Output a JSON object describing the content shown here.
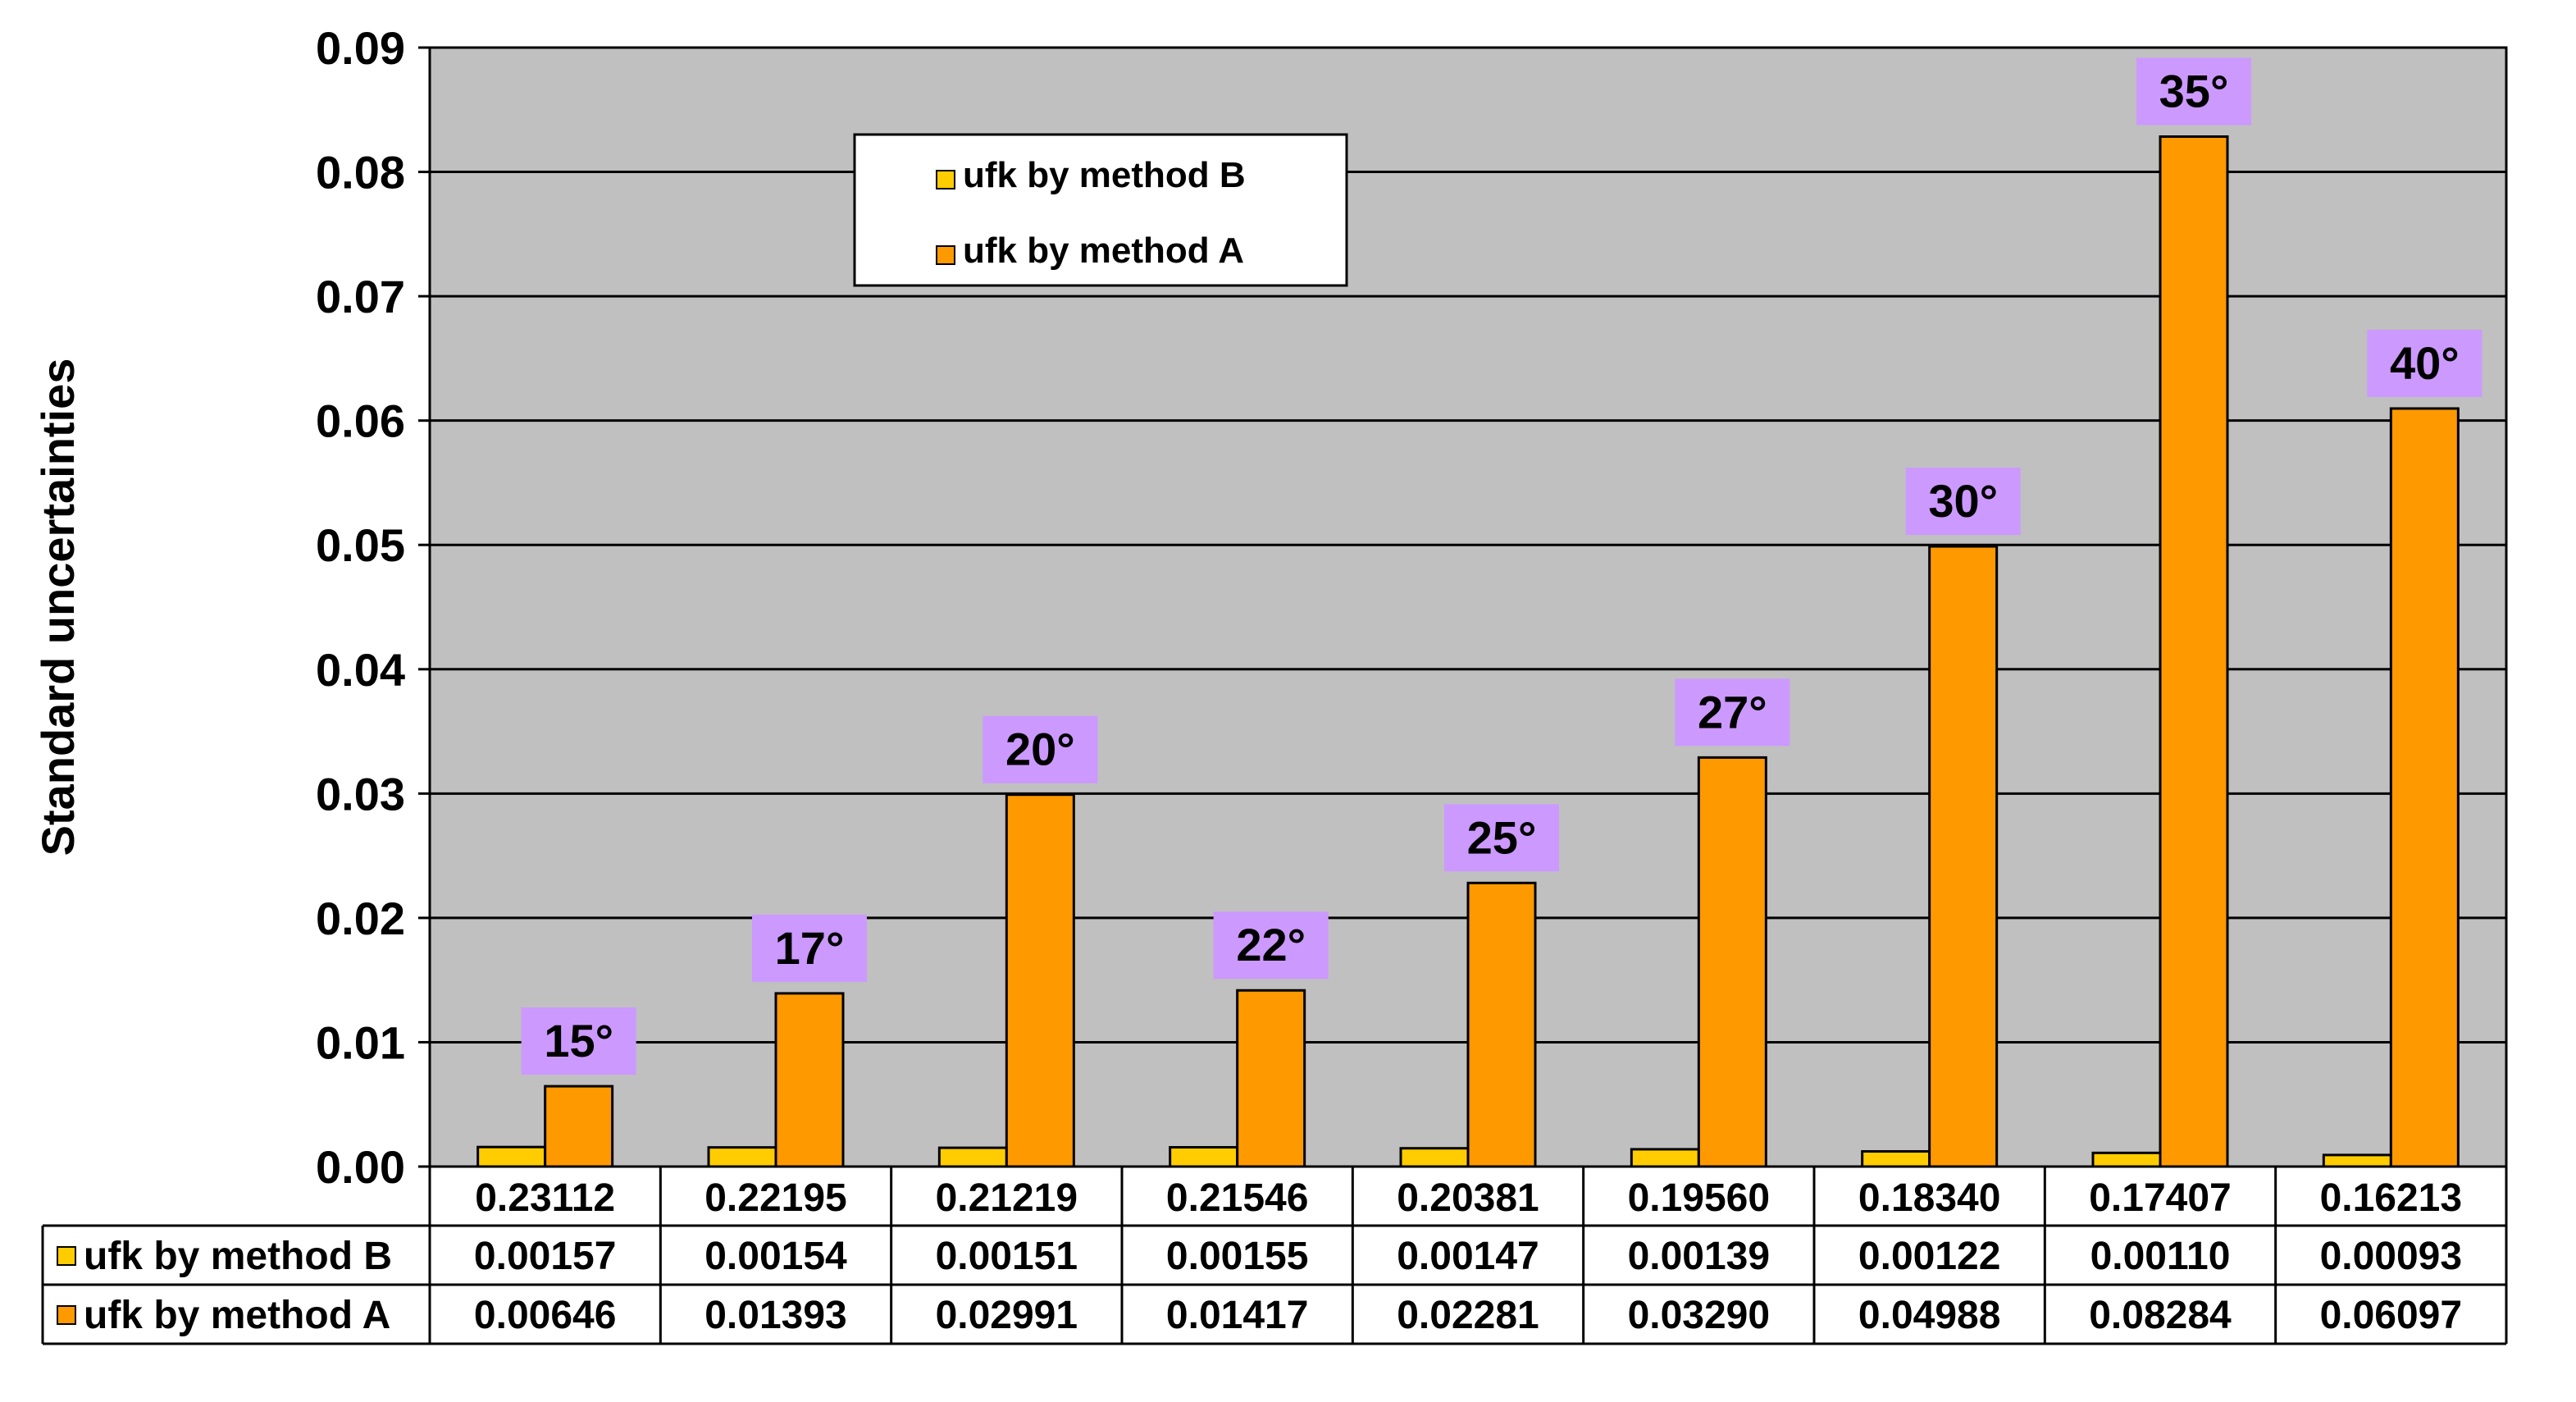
{
  "chart_data": {
    "type": "bar",
    "title": "",
    "xlabel": "",
    "ylabel": "Standard uncertainties",
    "ylim": [
      0,
      0.09
    ],
    "yticks": [
      "0.00",
      "0.01",
      "0.02",
      "0.03",
      "0.04",
      "0.05",
      "0.06",
      "0.07",
      "0.08",
      "0.09"
    ],
    "grid": true,
    "legend_position": "top-center",
    "categories": [
      "0.23112",
      "0.22195",
      "0.21219",
      "0.21546",
      "0.20381",
      "0.19560",
      "0.18340",
      "0.17407",
      "0.16213"
    ],
    "annotations": [
      "15°",
      "17°",
      "20°",
      "22°",
      "25°",
      "27°",
      "30°",
      "35°",
      "40°"
    ],
    "series": [
      {
        "name": "ufk by method B",
        "color": "#FFCC00",
        "values": [
          0.00157,
          0.00154,
          0.00151,
          0.00155,
          0.00147,
          0.00139,
          0.00122,
          0.0011,
          0.00093
        ],
        "labels": [
          "0.00157",
          "0.00154",
          "0.00151",
          "0.00155",
          "0.00147",
          "0.00139",
          "0.00122",
          "0.00110",
          "0.00093"
        ]
      },
      {
        "name": "ufk by method A",
        "color": "#FF9900",
        "values": [
          0.00646,
          0.01393,
          0.02991,
          0.01417,
          0.02281,
          0.0329,
          0.04988,
          0.08284,
          0.06097
        ],
        "labels": [
          "0.00646",
          "0.01393",
          "0.02991",
          "0.01417",
          "0.02281",
          "0.03290",
          "0.04988",
          "0.08284",
          "0.06097"
        ]
      }
    ],
    "colors": {
      "plot_background": "#C0C0C0",
      "annotation_background": "#CC99FF",
      "gridline": "#000000"
    }
  }
}
